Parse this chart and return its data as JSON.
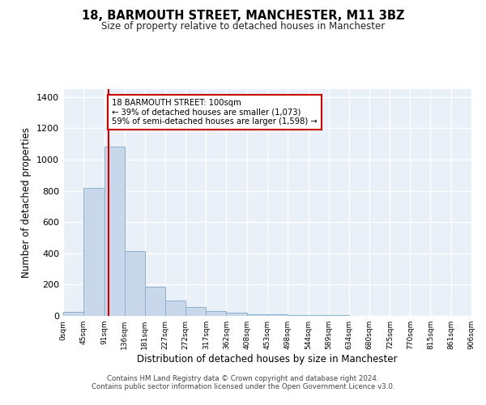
{
  "title": "18, BARMOUTH STREET, MANCHESTER, M11 3BZ",
  "subtitle": "Size of property relative to detached houses in Manchester",
  "xlabel": "Distribution of detached houses by size in Manchester",
  "ylabel": "Number of detached properties",
  "bin_labels": [
    "0sqm",
    "45sqm",
    "91sqm",
    "136sqm",
    "181sqm",
    "227sqm",
    "272sqm",
    "317sqm",
    "362sqm",
    "408sqm",
    "453sqm",
    "498sqm",
    "544sqm",
    "589sqm",
    "634sqm",
    "680sqm",
    "725sqm",
    "770sqm",
    "815sqm",
    "861sqm",
    "906sqm"
  ],
  "bin_edges": [
    0,
    45,
    91,
    136,
    181,
    227,
    272,
    317,
    362,
    408,
    453,
    498,
    544,
    589,
    634,
    680,
    725,
    770,
    815,
    861,
    906
  ],
  "bar_heights": [
    25,
    820,
    1080,
    415,
    185,
    100,
    55,
    32,
    20,
    12,
    8,
    5,
    3,
    3,
    2,
    1,
    1,
    1,
    0,
    0
  ],
  "bar_color": "#c8d8ea",
  "bar_edge_color": "#8ab0cc",
  "property_size": 100,
  "property_line_color": "#cc0000",
  "annotation_text": "18 BARMOUTH STREET: 100sqm\n← 39% of detached houses are smaller (1,073)\n59% of semi-detached houses are larger (1,598) →",
  "annotation_box_color": "#ffffff",
  "annotation_box_edge": "#cc0000",
  "ylim": [
    0,
    1450
  ],
  "yticks": [
    0,
    200,
    400,
    600,
    800,
    1000,
    1200,
    1400
  ],
  "background_color": "#eaf0f8",
  "grid_color": "#ffffff",
  "footer_line1": "Contains HM Land Registry data © Crown copyright and database right 2024.",
  "footer_line2": "Contains public sector information licensed under the Open Government Licence v3.0."
}
